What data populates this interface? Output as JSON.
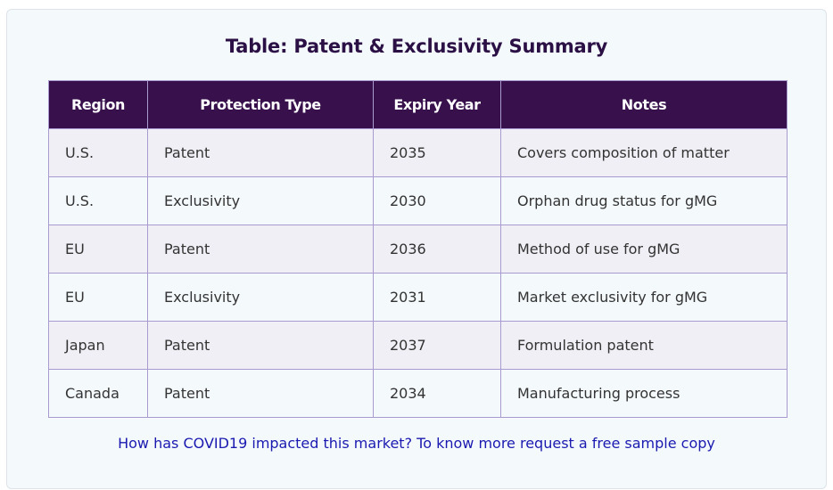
{
  "title": "Table: Patent & Exclusivity Summary",
  "table": {
    "headers": [
      "Region",
      "Protection Type",
      "Expiry Year",
      "Notes"
    ],
    "rows": [
      [
        "U.S.",
        "Patent",
        "2035",
        "Covers composition of matter"
      ],
      [
        "U.S.",
        "Exclusivity",
        "2030",
        "Orphan drug status for gMG"
      ],
      [
        "EU",
        "Patent",
        "2036",
        "Method of use for gMG"
      ],
      [
        "EU",
        "Exclusivity",
        "2031",
        "Market exclusivity for gMG"
      ],
      [
        "Japan",
        "Patent",
        "2037",
        "Formulation patent"
      ],
      [
        "Canada",
        "Patent",
        "2034",
        "Manufacturing process"
      ]
    ]
  },
  "link_text": "How has COVID19 impacted this market? To know more request a free sample copy",
  "colors": {
    "header_bg": "#37104c",
    "title": "#2b1045",
    "link": "#1a1ab0",
    "row_alt": "#efeff5",
    "border": "#a99bd0"
  }
}
